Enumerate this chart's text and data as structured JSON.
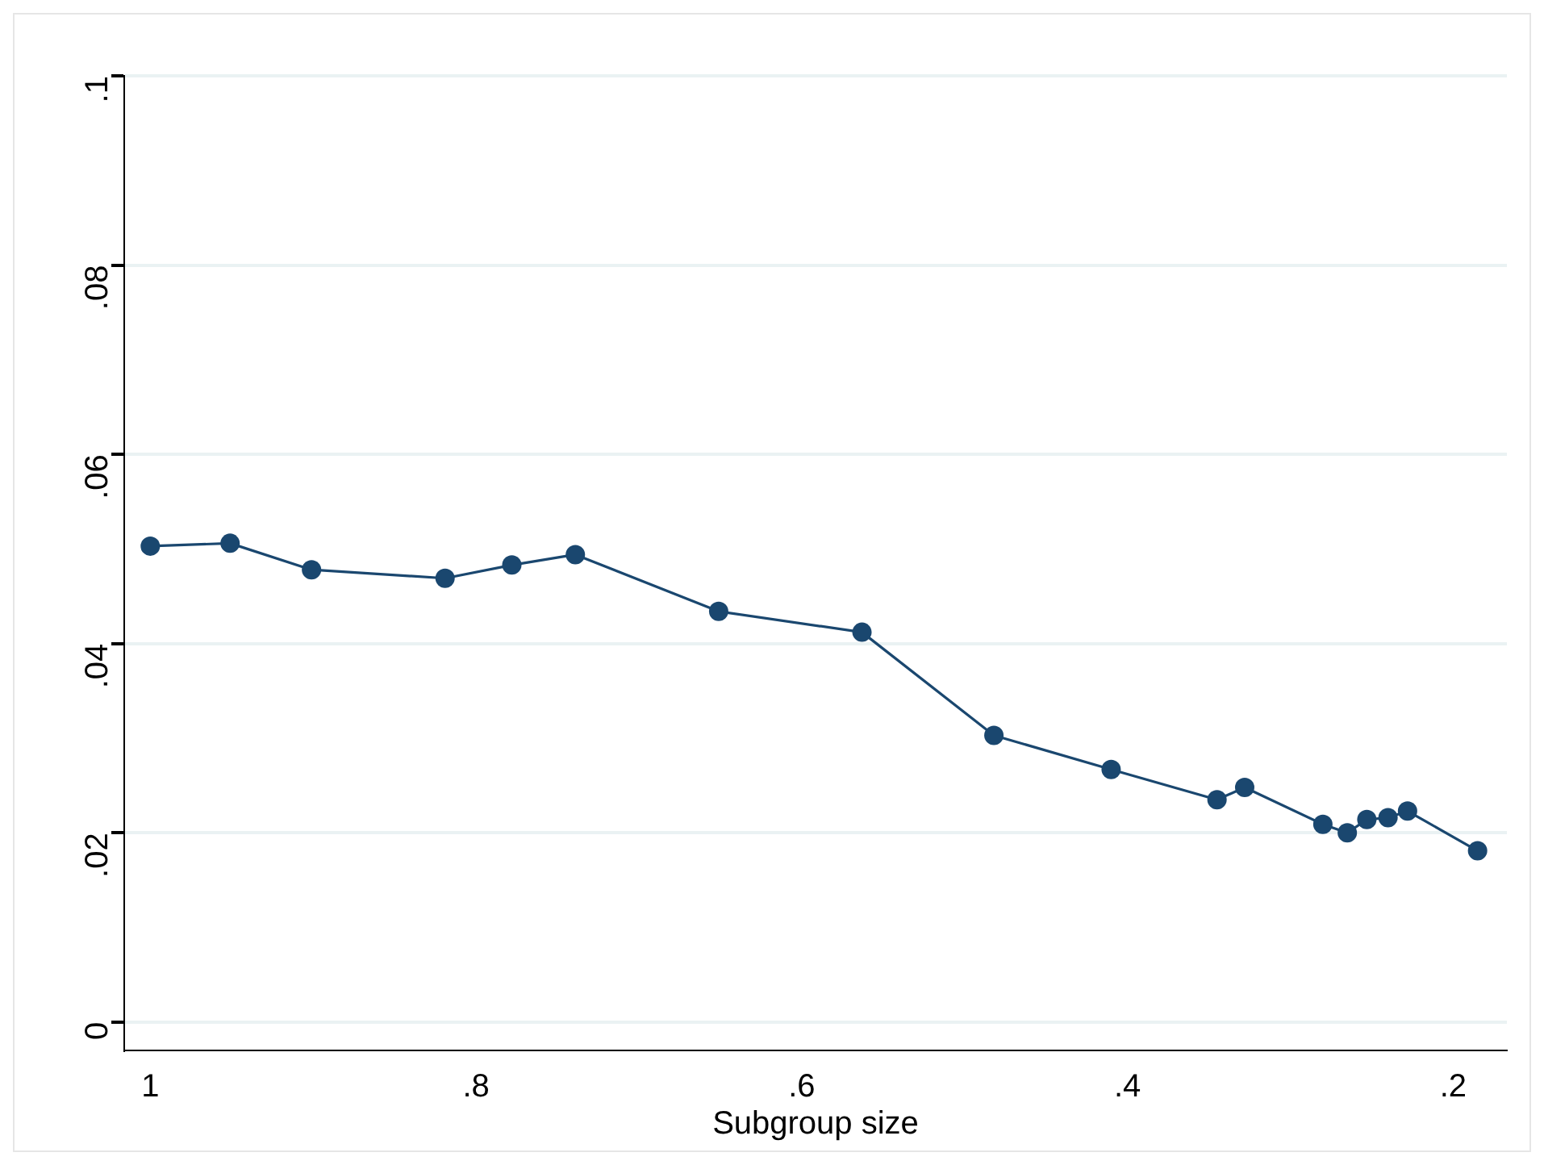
{
  "chart_data": {
    "type": "line",
    "xlabel": "Subgroup size",
    "x": [
      1,
      0.951,
      0.901,
      0.819,
      0.778,
      0.739,
      0.651,
      0.563,
      0.482,
      0.41,
      0.345,
      0.328,
      0.28,
      0.265,
      0.253,
      0.24,
      0.228,
      0.185
    ],
    "series": [
      {
        "color": "#1a476f",
        "values": [
          0.0503,
          0.0506,
          0.0478,
          0.0469,
          0.0483,
          0.0494,
          0.0434,
          0.0412,
          0.0303,
          0.0267,
          0.0235,
          0.0248,
          0.0209,
          0.02,
          0.0214,
          0.0216,
          0.0223,
          0.0181
        ]
      }
    ],
    "xlim": [
      1.016,
      0.167
    ],
    "ylim": [
      -0.003,
      0.1
    ],
    "xticks": [
      1,
      {
        "value": 0.8,
        "label": ".8"
      },
      {
        "value": 0.6,
        "label": ".6"
      },
      {
        "value": 0.4,
        "label": ".4"
      },
      {
        "value": 0.2,
        "label": ".2"
      }
    ],
    "yticks": [
      0,
      {
        "value": 0.02,
        "label": ".02"
      },
      {
        "value": 0.04,
        "label": ".04"
      },
      {
        "value": 0.06,
        "label": ".06"
      },
      {
        "value": 0.08,
        "label": ".08"
      },
      {
        "value": 0.1,
        "label": ".1"
      }
    ],
    "grid": "y",
    "marker": "circle",
    "line_style": "solid",
    "legend": false
  }
}
